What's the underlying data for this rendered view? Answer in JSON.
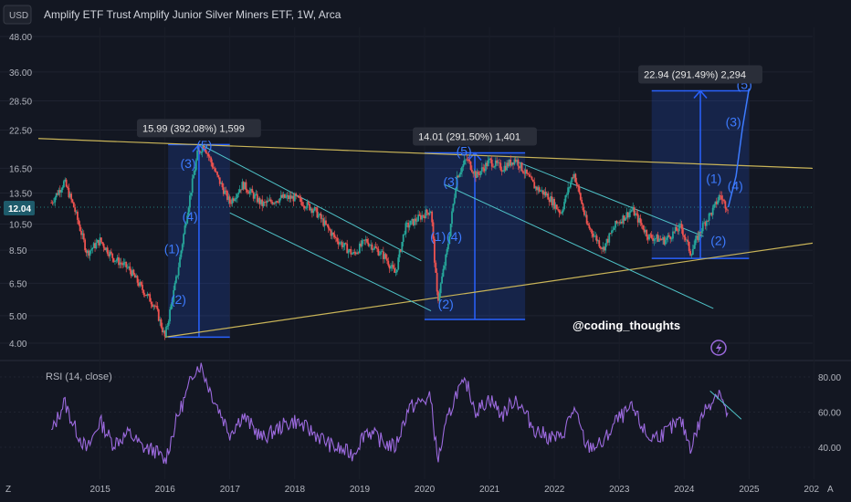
{
  "header": {
    "currency": "USD",
    "title": "Amplify ETF Trust Amplify Junior Silver Miners ETF, 1W, Arca"
  },
  "price_badge": "12.04",
  "watermark": "@coding_thoughts",
  "rsi_label": "RSI (14, close)",
  "corner_left": "Z",
  "corner_right": "A",
  "colors": {
    "up": "#26a69a",
    "down": "#ef5350",
    "wave": "#3d7bff",
    "box": "#2962ff",
    "trend": "#c9b458",
    "channel": "#4fc3c8",
    "rsi": "#9c6ade",
    "badge": "#1e5b6b"
  },
  "chart_data": [
    {
      "type": "candlestick",
      "title": "Amplify ETF Trust Amplify Junior Silver Miners ETF, 1W, Arca",
      "y_scale": "log",
      "y_ticks": [
        "48.00",
        "36.00",
        "28.50",
        "22.50",
        "16.50",
        "13.50",
        "10.50",
        "8.50",
        "6.50",
        "5.00",
        "4.00"
      ],
      "x_ticks": [
        "2015",
        "2016",
        "2017",
        "2018",
        "2019",
        "2020",
        "2021",
        "2022",
        "2023",
        "2024",
        "2025",
        "202"
      ],
      "last_price": 12.04,
      "price_path": [
        [
          2014.25,
          12.5
        ],
        [
          2014.45,
          14.8
        ],
        [
          2014.6,
          12.0
        ],
        [
          2014.8,
          8.3
        ],
        [
          2015.0,
          9.2
        ],
        [
          2015.2,
          8.0
        ],
        [
          2015.45,
          7.3
        ],
        [
          2015.65,
          6.2
        ],
        [
          2015.85,
          5.4
        ],
        [
          2016.0,
          4.2
        ],
        [
          2016.2,
          7.2
        ],
        [
          2016.35,
          11.8
        ],
        [
          2016.5,
          18.5
        ],
        [
          2016.6,
          20.0
        ],
        [
          2016.8,
          15.5
        ],
        [
          2017.0,
          12.5
        ],
        [
          2017.2,
          14.5
        ],
        [
          2017.5,
          12.3
        ],
        [
          2017.8,
          13.0
        ],
        [
          2018.0,
          13.0
        ],
        [
          2018.3,
          11.8
        ],
        [
          2018.6,
          9.5
        ],
        [
          2018.9,
          8.2
        ],
        [
          2019.1,
          9.2
        ],
        [
          2019.4,
          8.0
        ],
        [
          2019.55,
          7.0
        ],
        [
          2019.7,
          10.2
        ],
        [
          2019.95,
          11.2
        ],
        [
          2020.1,
          11.8
        ],
        [
          2020.2,
          5.6
        ],
        [
          2020.35,
          8.5
        ],
        [
          2020.5,
          15.5
        ],
        [
          2020.65,
          17.8
        ],
        [
          2020.8,
          15.5
        ],
        [
          2021.0,
          17.5
        ],
        [
          2021.2,
          16.5
        ],
        [
          2021.4,
          17.8
        ],
        [
          2021.7,
          14.2
        ],
        [
          2021.9,
          13.2
        ],
        [
          2022.1,
          11.5
        ],
        [
          2022.3,
          16.0
        ],
        [
          2022.5,
          10.5
        ],
        [
          2022.75,
          8.6
        ],
        [
          2022.95,
          10.5
        ],
        [
          2023.2,
          11.8
        ],
        [
          2023.45,
          9.5
        ],
        [
          2023.7,
          9.2
        ],
        [
          2023.95,
          10.3
        ],
        [
          2024.1,
          8.3
        ],
        [
          2024.3,
          10.5
        ],
        [
          2024.45,
          11.8
        ],
        [
          2024.55,
          13.3
        ],
        [
          2024.62,
          12.4
        ],
        [
          2024.68,
          12.04
        ]
      ],
      "projection": [
        [
          2024.68,
          12.04
        ],
        [
          2024.8,
          15.5
        ],
        [
          2024.9,
          23.0
        ],
        [
          2025.0,
          31.5
        ]
      ],
      "trendlines": [
        {
          "name": "upper",
          "from": [
            2014.05,
            21.0
          ],
          "to": [
            2025.98,
            16.5
          ]
        },
        {
          "name": "lower",
          "from": [
            2016.0,
            4.2
          ],
          "to": [
            2025.98,
            9.0
          ]
        }
      ],
      "channels": [
        {
          "from": [
            2016.55,
            20.0
          ],
          "to": [
            2019.95,
            7.8
          ]
        },
        {
          "from": [
            2017.0,
            11.5
          ],
          "to": [
            2020.1,
            5.2
          ]
        },
        {
          "from": [
            2021.4,
            17.5
          ],
          "to": [
            2024.3,
            9.5
          ]
        },
        {
          "from": [
            2020.3,
            14.5
          ],
          "to": [
            2024.45,
            5.3
          ]
        }
      ],
      "boxes": [
        {
          "x0": 2016.05,
          "x1": 2017.0,
          "y0": 4.2,
          "y1": 20.0,
          "label": "15.99 (392.08%) 1,599"
        },
        {
          "x0": 2020.0,
          "x1": 2021.55,
          "y0": 4.85,
          "y1": 18.7,
          "label": "14.01 (291.50%) 1,401"
        },
        {
          "x0": 2023.5,
          "x1": 2025.0,
          "y0": 7.95,
          "y1": 30.9,
          "label": "22.94 (291.49%) 2,294"
        }
      ],
      "waves": [
        {
          "t": "(1)",
          "x": 2016.1,
          "y": 8.6
        },
        {
          "t": "(2)",
          "x": 2016.2,
          "y": 5.7
        },
        {
          "t": "(3)",
          "x": 2016.35,
          "y": 17.2
        },
        {
          "t": "(4)",
          "x": 2016.38,
          "y": 11.2
        },
        {
          "t": "(5)",
          "x": 2016.6,
          "y": 19.9
        },
        {
          "t": "(1)",
          "x": 2020.2,
          "y": 9.5
        },
        {
          "t": "(2)",
          "x": 2020.32,
          "y": 5.5
        },
        {
          "t": "(3)",
          "x": 2020.4,
          "y": 14.8
        },
        {
          "t": "(4)",
          "x": 2020.45,
          "y": 9.5
        },
        {
          "t": "(5)",
          "x": 2020.6,
          "y": 19.0
        },
        {
          "t": "(1)",
          "x": 2024.45,
          "y": 15.2
        },
        {
          "t": "(2)",
          "x": 2024.52,
          "y": 9.2
        },
        {
          "t": "(3)",
          "x": 2024.75,
          "y": 24.0
        },
        {
          "t": "(4)",
          "x": 2024.78,
          "y": 14.3
        },
        {
          "t": "(5)",
          "x": 2024.92,
          "y": 32.5
        }
      ]
    },
    {
      "type": "line",
      "title": "RSI (14, close)",
      "y_ticks": [
        "80.00",
        "60.00",
        "40.00"
      ],
      "ylim": [
        30,
        88
      ],
      "values_path": [
        [
          2014.25,
          48
        ],
        [
          2014.45,
          66
        ],
        [
          2014.6,
          52
        ],
        [
          2014.8,
          38
        ],
        [
          2015.0,
          55
        ],
        [
          2015.2,
          42
        ],
        [
          2015.45,
          48
        ],
        [
          2015.65,
          40
        ],
        [
          2015.85,
          38
        ],
        [
          2016.0,
          32
        ],
        [
          2016.2,
          58
        ],
        [
          2016.35,
          72
        ],
        [
          2016.45,
          84
        ],
        [
          2016.55,
          87
        ],
        [
          2016.7,
          72
        ],
        [
          2016.85,
          60
        ],
        [
          2017.0,
          48
        ],
        [
          2017.2,
          58
        ],
        [
          2017.5,
          45
        ],
        [
          2017.8,
          52
        ],
        [
          2018.0,
          55
        ],
        [
          2018.3,
          48
        ],
        [
          2018.6,
          40
        ],
        [
          2018.9,
          36
        ],
        [
          2019.1,
          50
        ],
        [
          2019.4,
          42
        ],
        [
          2019.55,
          40
        ],
        [
          2019.75,
          62
        ],
        [
          2019.95,
          66
        ],
        [
          2020.1,
          68
        ],
        [
          2020.2,
          32
        ],
        [
          2020.35,
          55
        ],
        [
          2020.5,
          72
        ],
        [
          2020.65,
          76
        ],
        [
          2020.8,
          60
        ],
        [
          2021.0,
          68
        ],
        [
          2021.2,
          58
        ],
        [
          2021.4,
          68
        ],
        [
          2021.7,
          50
        ],
        [
          2021.9,
          46
        ],
        [
          2022.1,
          45
        ],
        [
          2022.3,
          62
        ],
        [
          2022.5,
          40
        ],
        [
          2022.75,
          42
        ],
        [
          2022.95,
          55
        ],
        [
          2023.2,
          62
        ],
        [
          2023.45,
          45
        ],
        [
          2023.7,
          48
        ],
        [
          2023.95,
          55
        ],
        [
          2024.1,
          40
        ],
        [
          2024.3,
          60
        ],
        [
          2024.45,
          68
        ],
        [
          2024.55,
          73
        ],
        [
          2024.62,
          62
        ],
        [
          2024.68,
          58
        ]
      ],
      "trendline": {
        "from": [
          2024.4,
          72
        ],
        "to": [
          2024.88,
          56
        ]
      }
    }
  ]
}
